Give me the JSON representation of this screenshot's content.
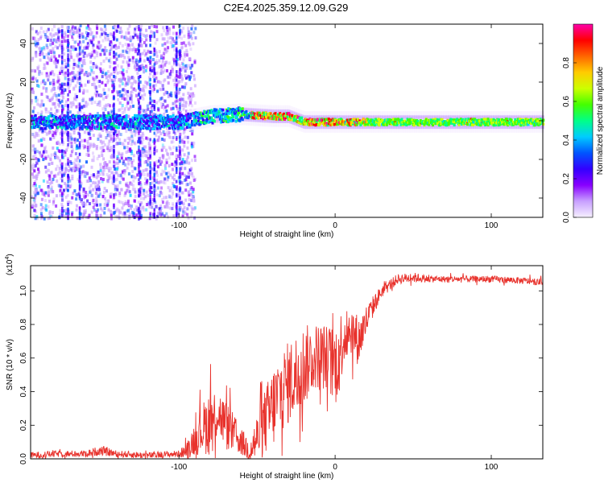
{
  "chart_data": [
    {
      "type": "heatmap",
      "title": "C2E4.2025.359.12.09.G29",
      "xlabel": "Height of straight line (km)",
      "ylabel": "Frequency (Hz)",
      "xlim": [
        -195,
        133
      ],
      "ylim": [
        -50,
        50
      ],
      "xticks": [
        -100,
        0,
        100
      ],
      "yticks": [
        -40,
        -20,
        0,
        20,
        40
      ],
      "colorbar": {
        "label": "Normalized spectral amplitude",
        "range": [
          0,
          1
        ],
        "ticks": [
          "0.0",
          "0.2",
          "0.4",
          "0.6",
          "0.8"
        ],
        "colors": [
          "#f6f0ff",
          "#c8a0ff",
          "#8800ff",
          "#3300ff",
          "#0055ff",
          "#00ccff",
          "#00ff88",
          "#44ff00",
          "#ccff00",
          "#ffcc00",
          "#ff6600",
          "#ff0000",
          "#ff00aa"
        ]
      },
      "ridge": {
        "description_points_km_hz": [
          [
            -195,
            0
          ],
          [
            -100,
            0
          ],
          [
            -80,
            3
          ],
          [
            -60,
            4
          ],
          [
            -40,
            3
          ],
          [
            -30,
            3
          ],
          [
            -20,
            0
          ],
          [
            -10,
            0
          ],
          [
            0,
            0
          ],
          [
            20,
            0
          ],
          [
            60,
            0
          ],
          [
            100,
            0
          ],
          [
            133,
            0
          ]
        ]
      },
      "noise_region_km": [
        -195,
        -95
      ]
    },
    {
      "type": "line",
      "title": "",
      "xlabel": "Height of straight line (km)",
      "ylabel": "SNR (10 * v/v)",
      "y_multiplier": "(x10",
      "y_multiplier_exp": "4",
      "y_multiplier_close": ")",
      "xlim": [
        -195,
        133
      ],
      "ylim": [
        0,
        1.15
      ],
      "xticks": [
        -100,
        0,
        100
      ],
      "yticks": [
        "0.0",
        "0.2",
        "0.4",
        "0.6",
        "0.8",
        "1.0"
      ],
      "color": "#e8322c",
      "series": [
        {
          "name": "SNR",
          "x": [
            -195,
            -180,
            -160,
            -150,
            -140,
            -120,
            -100,
            -95,
            -90,
            -85,
            -80,
            -75,
            -70,
            -65,
            -60,
            -55,
            -50,
            -45,
            -40,
            -35,
            -30,
            -25,
            -20,
            -15,
            -10,
            -5,
            0,
            5,
            10,
            15,
            20,
            25,
            30,
            40,
            50,
            60,
            80,
            100,
            120,
            133
          ],
          "values": [
            0.02,
            0.03,
            0.03,
            0.05,
            0.03,
            0.02,
            0.03,
            0.05,
            0.12,
            0.18,
            0.22,
            0.28,
            0.2,
            0.15,
            0.1,
            0.05,
            0.12,
            0.22,
            0.3,
            0.4,
            0.45,
            0.5,
            0.55,
            0.6,
            0.62,
            0.6,
            0.55,
            0.72,
            0.78,
            0.7,
            0.82,
            0.92,
            1.0,
            1.07,
            1.08,
            1.07,
            1.07,
            1.07,
            1.06,
            1.05
          ],
          "noise_amplitude": [
            0.02,
            0.02,
            0.02,
            0.03,
            0.02,
            0.02,
            0.02,
            0.05,
            0.1,
            0.15,
            0.2,
            0.15,
            0.15,
            0.12,
            0.08,
            0.08,
            0.15,
            0.2,
            0.25,
            0.25,
            0.25,
            0.25,
            0.25,
            0.2,
            0.2,
            0.2,
            0.25,
            0.2,
            0.15,
            0.15,
            0.1,
            0.06,
            0.04,
            0.03,
            0.03,
            0.02,
            0.02,
            0.02,
            0.02,
            0.02
          ]
        }
      ]
    }
  ]
}
